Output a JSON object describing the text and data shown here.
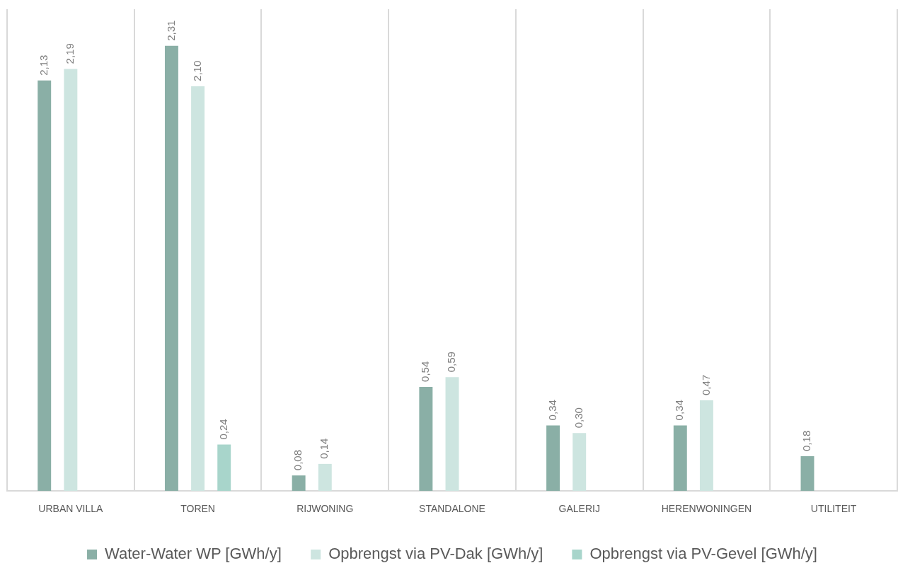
{
  "chart_data": {
    "type": "bar",
    "categories": [
      "URBAN VILLA",
      "TOREN",
      "RIJWONING",
      "STANDALONE",
      "GALERIJ",
      "HERENWONINGEN",
      "UTILITEIT"
    ],
    "series": [
      {
        "name": "Water-Water WP [GWh/y]",
        "color": "#8aafa6",
        "values": [
          2.13,
          2.31,
          0.08,
          0.54,
          0.34,
          0.34,
          0.18
        ],
        "value_labels": [
          "2,13",
          "2,31",
          "0,08",
          "0,54",
          "0,34",
          "0,34",
          "0,18"
        ]
      },
      {
        "name": "Opbrengst via PV-Dak [GWh/y]",
        "color": "#cde5e0",
        "values": [
          2.19,
          2.1,
          0.14,
          0.59,
          0.3,
          0.47,
          null
        ],
        "value_labels": [
          "2,19",
          "2,10",
          "0,14",
          "0,59",
          "0,30",
          "0,47",
          null
        ]
      },
      {
        "name": "Opbrengst via PV-Gevel [GWh/y]",
        "color": "#a8d5cb",
        "values": [
          null,
          0.24,
          null,
          null,
          null,
          null,
          null
        ],
        "value_labels": [
          null,
          "0,24",
          null,
          null,
          null,
          null,
          null
        ]
      }
    ],
    "ylim": [
      0,
      2.5
    ],
    "grid": "x",
    "legend": "bottom",
    "tick_labels": "x"
  }
}
